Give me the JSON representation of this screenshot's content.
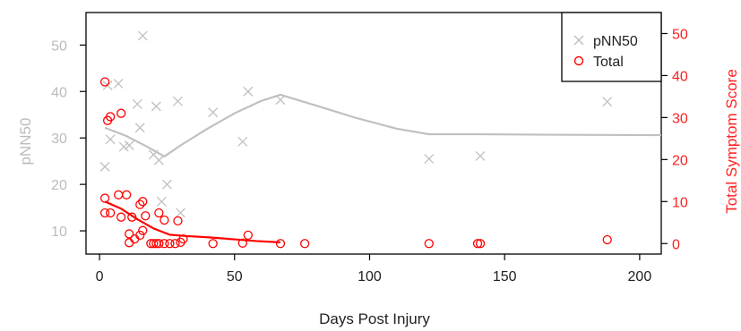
{
  "chart_data": {
    "type": "scatter",
    "xlabel": "Days Post Injury",
    "ylabel_left": "pNN50",
    "ylabel_right": "Total Symptom Score",
    "xlim": [
      -5,
      208
    ],
    "ylim_left": [
      5,
      57
    ],
    "ylim_right": [
      -2.5,
      55
    ],
    "x_ticks": [
      0,
      50,
      100,
      150,
      200
    ],
    "y_left_ticks": [
      10,
      20,
      30,
      40,
      50
    ],
    "y_right_ticks": [
      0,
      10,
      20,
      30,
      40,
      50
    ],
    "grid": false,
    "legend_position": "top-right",
    "colors": {
      "pnn50": "#c0c0c0",
      "total": "#ff0000",
      "axis": "#000000",
      "left_axis_text": "#bbbbbb",
      "right_axis_text": "#ff2020"
    },
    "series": [
      {
        "name": "pNN50",
        "axis": "left",
        "marker": "x",
        "points": [
          {
            "x": 2,
            "y": 23.8
          },
          {
            "x": 3,
            "y": 41.3
          },
          {
            "x": 4,
            "y": 29.7
          },
          {
            "x": 7,
            "y": 41.7
          },
          {
            "x": 9,
            "y": 28.1
          },
          {
            "x": 11,
            "y": 28.4
          },
          {
            "x": 14,
            "y": 37.3
          },
          {
            "x": 15,
            "y": 32.2
          },
          {
            "x": 16,
            "y": 52.0
          },
          {
            "x": 20,
            "y": 26.4
          },
          {
            "x": 21,
            "y": 36.8
          },
          {
            "x": 22,
            "y": 25.2
          },
          {
            "x": 23,
            "y": 16.3
          },
          {
            "x": 25,
            "y": 20.0
          },
          {
            "x": 29,
            "y": 37.9
          },
          {
            "x": 30,
            "y": 13.9
          },
          {
            "x": 42,
            "y": 35.5
          },
          {
            "x": 53,
            "y": 29.2
          },
          {
            "x": 55,
            "y": 40.0
          },
          {
            "x": 67,
            "y": 38.2
          },
          {
            "x": 122,
            "y": 25.5
          },
          {
            "x": 141,
            "y": 26.1
          },
          {
            "x": 188,
            "y": 37.8
          }
        ],
        "trend": [
          {
            "x": 2,
            "y": 32.2
          },
          {
            "x": 10,
            "y": 30.4
          },
          {
            "x": 18,
            "y": 28.0
          },
          {
            "x": 24,
            "y": 26.0
          },
          {
            "x": 30,
            "y": 28.4
          },
          {
            "x": 40,
            "y": 32.0
          },
          {
            "x": 50,
            "y": 35.3
          },
          {
            "x": 60,
            "y": 38.0
          },
          {
            "x": 67,
            "y": 39.3
          },
          {
            "x": 80,
            "y": 37.0
          },
          {
            "x": 95,
            "y": 34.3
          },
          {
            "x": 110,
            "y": 32.0
          },
          {
            "x": 122,
            "y": 30.8
          },
          {
            "x": 140,
            "y": 30.8
          },
          {
            "x": 165,
            "y": 30.7
          },
          {
            "x": 208,
            "y": 30.6
          }
        ]
      },
      {
        "name": "Total",
        "axis": "right",
        "marker": "circle",
        "points": [
          {
            "x": 2,
            "y": 38.5
          },
          {
            "x": 2,
            "y": 10.8
          },
          {
            "x": 2,
            "y": 7.3
          },
          {
            "x": 3,
            "y": 29.3
          },
          {
            "x": 4,
            "y": 30.2
          },
          {
            "x": 4,
            "y": 7.3
          },
          {
            "x": 7,
            "y": 11.6
          },
          {
            "x": 8,
            "y": 31.0
          },
          {
            "x": 8,
            "y": 6.3
          },
          {
            "x": 10,
            "y": 11.6
          },
          {
            "x": 11,
            "y": 2.3
          },
          {
            "x": 11,
            "y": 0.2
          },
          {
            "x": 12,
            "y": 6.3
          },
          {
            "x": 13,
            "y": 1.1
          },
          {
            "x": 15,
            "y": 2.0
          },
          {
            "x": 15,
            "y": 9.3
          },
          {
            "x": 16,
            "y": 10.0
          },
          {
            "x": 16,
            "y": 3.1
          },
          {
            "x": 17,
            "y": 6.6
          },
          {
            "x": 19,
            "y": 0.0
          },
          {
            "x": 20,
            "y": 0.0
          },
          {
            "x": 21,
            "y": 0.0
          },
          {
            "x": 22,
            "y": 7.3
          },
          {
            "x": 22,
            "y": 0.0
          },
          {
            "x": 24,
            "y": 5.6
          },
          {
            "x": 24,
            "y": 0.0
          },
          {
            "x": 26,
            "y": 0.0
          },
          {
            "x": 28,
            "y": 0.0
          },
          {
            "x": 29,
            "y": 5.4
          },
          {
            "x": 30,
            "y": 0.3
          },
          {
            "x": 31,
            "y": 1.1
          },
          {
            "x": 42,
            "y": 0.0
          },
          {
            "x": 53,
            "y": 0.1
          },
          {
            "x": 55,
            "y": 2.0
          },
          {
            "x": 67,
            "y": 0.0
          },
          {
            "x": 76,
            "y": 0.0
          },
          {
            "x": 122,
            "y": 0.0
          },
          {
            "x": 140,
            "y": 0.0
          },
          {
            "x": 141,
            "y": 0.0
          },
          {
            "x": 188,
            "y": 0.9
          }
        ],
        "trend": [
          {
            "x": 2,
            "y": 10.0
          },
          {
            "x": 8,
            "y": 8.3
          },
          {
            "x": 14,
            "y": 5.8
          },
          {
            "x": 20,
            "y": 3.6
          },
          {
            "x": 26,
            "y": 2.1
          },
          {
            "x": 32,
            "y": 1.8
          },
          {
            "x": 40,
            "y": 1.5
          },
          {
            "x": 50,
            "y": 1.0
          },
          {
            "x": 58,
            "y": 0.6
          },
          {
            "x": 67,
            "y": 0.3
          }
        ]
      }
    ]
  }
}
